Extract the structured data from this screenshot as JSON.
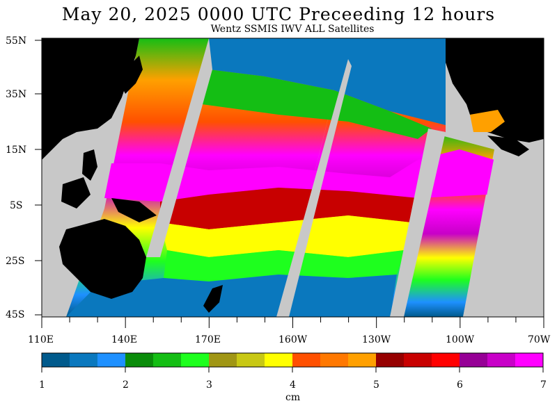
{
  "title": "May 20, 2025  0000 UTC Preceeding 12 hours",
  "subtitle": "Wentz SSMIS IWV ALL Satellites",
  "lat_labels": [
    "55N",
    "35N",
    "15N",
    "5S",
    "25S",
    "45S"
  ],
  "lon_labels": [
    "110E",
    "140E",
    "170E",
    "160W",
    "130W",
    "100W",
    "70W"
  ],
  "colorbar": {
    "colors": [
      "#005a8c",
      "#0a78be",
      "#1e90ff",
      "#0a8c0a",
      "#14be14",
      "#1eff1e",
      "#a09614",
      "#c8c814",
      "#ffff00",
      "#ff5000",
      "#ff7800",
      "#ffa000",
      "#960000",
      "#c80000",
      "#ff0000",
      "#960096",
      "#c800c8",
      "#ff00ff"
    ],
    "tick_labels": [
      "1",
      "2",
      "3",
      "4",
      "5",
      "6",
      "7"
    ],
    "unit": "cm"
  },
  "colors": {
    "land": "#000000",
    "no_data": "#c8c8c8",
    "background": "#ffffff"
  }
}
